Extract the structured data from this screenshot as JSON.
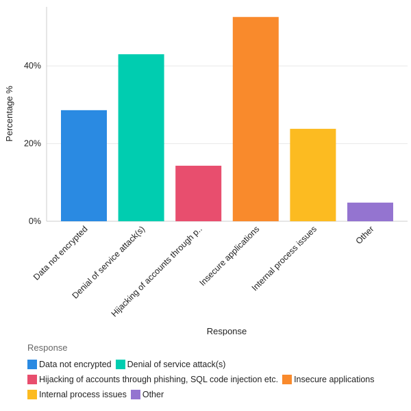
{
  "chart_data": {
    "type": "bar",
    "xlabel": "Response",
    "ylabel": "Percentage %",
    "ylim": [
      0,
      55
    ],
    "yticks": [
      "0%",
      "20%",
      "40%"
    ],
    "ytick_values": [
      0,
      20,
      40
    ],
    "grid": true,
    "categories": [
      "Data not encrypted",
      "Denial of service attack(s)",
      "Hijacking of accounts through phishing, SQL code injection etc.",
      "Insecure applications",
      "Internal process issues",
      "Other"
    ],
    "tick_labels": [
      "Data not encrypted",
      "Denial of service attack(s)",
      "Hijacking of accounts through p..",
      "Insecure applications",
      "Internal process issues",
      "Other"
    ],
    "values": [
      28.6,
      43.0,
      14.3,
      52.6,
      23.8,
      4.8
    ],
    "colors": [
      "#2a8ae2",
      "#00cdb0",
      "#e84e6e",
      "#f98a2c",
      "#fcbb21",
      "#9474d0"
    ],
    "legend": {
      "title": "Response",
      "placement": "bottom-left",
      "rows": [
        [
          0,
          1
        ],
        [
          2,
          3
        ],
        [
          4,
          5
        ]
      ]
    }
  }
}
